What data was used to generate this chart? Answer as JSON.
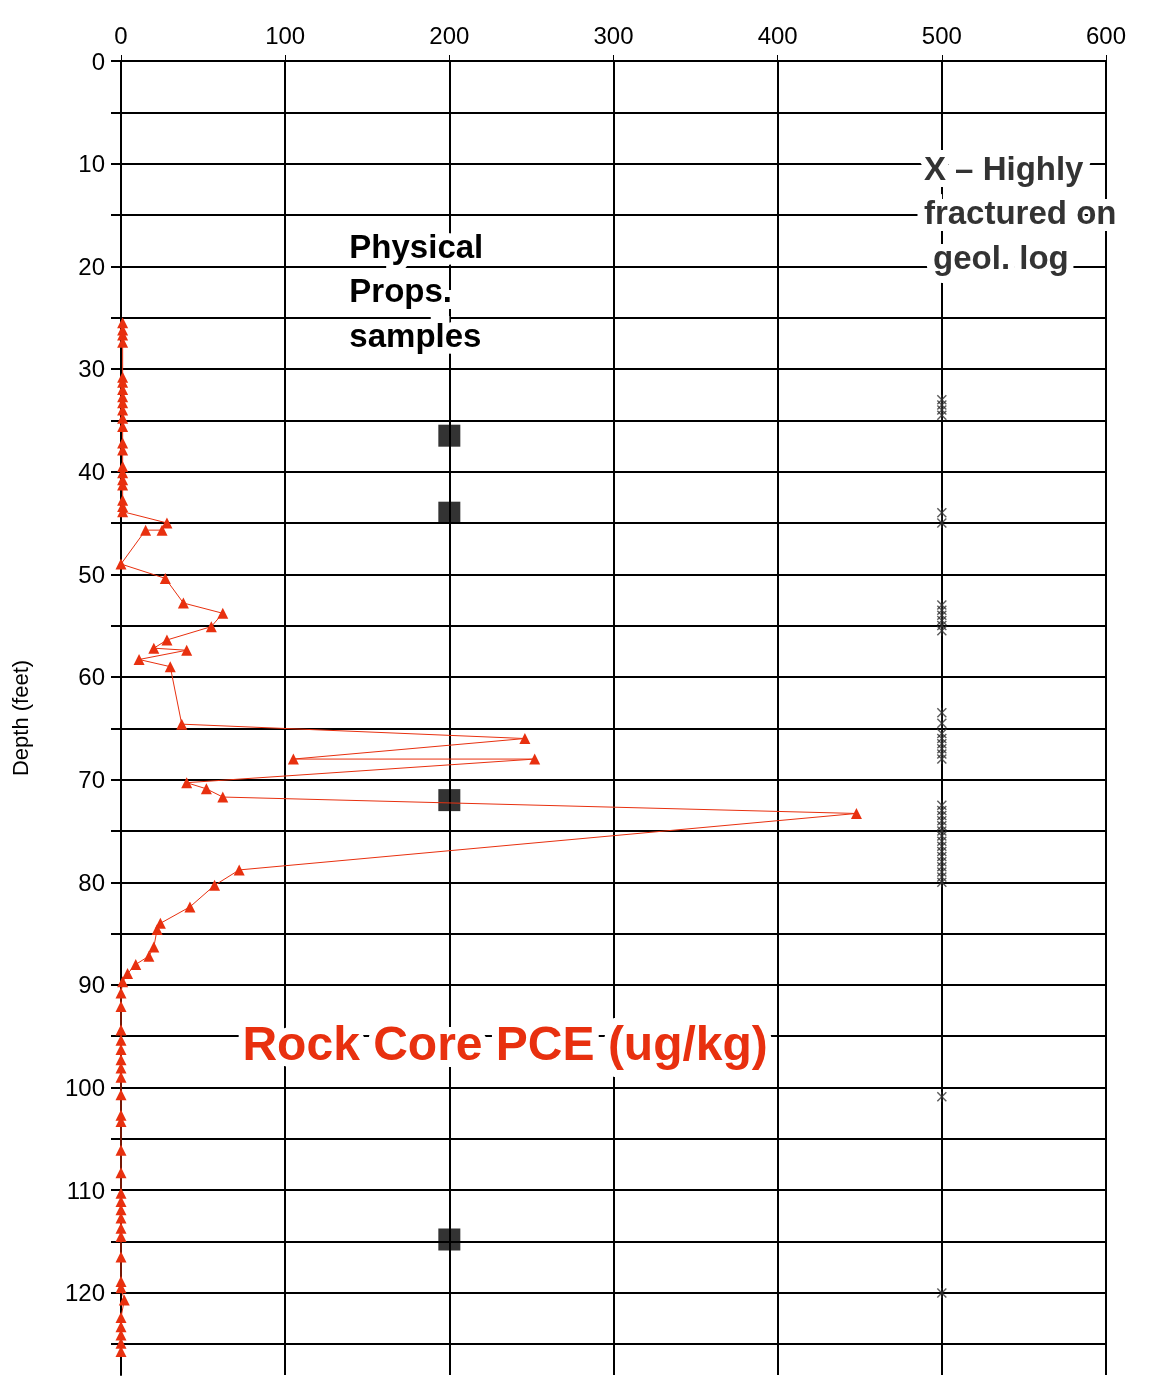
{
  "chart_data": {
    "type": "line",
    "ylabel": "Depth (feet)",
    "xlim": [
      0,
      600
    ],
    "xticks": [
      0,
      100,
      200,
      300,
      400,
      500,
      600
    ],
    "ylim": [
      128,
      0
    ],
    "yticks": [
      0,
      {
        "value": 5,
        "label": null
      },
      10,
      {
        "value": 15,
        "label": null
      },
      20,
      {
        "value": 25,
        "label": null
      },
      30,
      {
        "value": 35,
        "label": null
      },
      40,
      {
        "value": 45,
        "label": null
      },
      50,
      {
        "value": 55,
        "label": null
      },
      60,
      {
        "value": 65,
        "label": null
      },
      70,
      {
        "value": 75,
        "label": null
      },
      80,
      {
        "value": 85,
        "label": null
      },
      90,
      {
        "value": 95,
        "label": null
      },
      100,
      {
        "value": 105,
        "label": null
      },
      110,
      {
        "value": 115,
        "label": null
      },
      120,
      {
        "value": 125,
        "label": null
      }
    ],
    "grid": true,
    "series": [
      {
        "name": "Rock Core PCE (ug/kg)",
        "type": "line",
        "marker": "triangle",
        "color": "#e8300f",
        "x": [
          1,
          1,
          1,
          1,
          1,
          1,
          1,
          1,
          1,
          1,
          1,
          1,
          1,
          1,
          1,
          1,
          1,
          1,
          1,
          1,
          1,
          28,
          25,
          15,
          0,
          27,
          38,
          62,
          55,
          28,
          20,
          40,
          11,
          30,
          37,
          246,
          105,
          252,
          40,
          52,
          62,
          448,
          72,
          57,
          42,
          24,
          22,
          20,
          17,
          9,
          4,
          1,
          0,
          0,
          0,
          0,
          0,
          0,
          0,
          0,
          0,
          0,
          0,
          0,
          0,
          0,
          0,
          0,
          0,
          0,
          0,
          0,
          0,
          0,
          2,
          0,
          0,
          0,
          0,
          0
        ],
        "values": [
          25.5,
          26.2,
          26.7,
          27.4,
          30.8,
          31.3,
          32,
          32.7,
          33.3,
          34,
          34.8,
          35.6,
          37.2,
          37.9,
          39.5,
          40.1,
          40.8,
          41.3,
          42.8,
          43.4,
          43.9,
          45,
          45.7,
          45.7,
          49,
          50.4,
          52.8,
          53.8,
          55.1,
          56.4,
          57.2,
          57.4,
          58.3,
          59,
          64.6,
          66,
          68,
          68,
          70.3,
          70.9,
          71.7,
          73.3,
          78.8,
          80.3,
          82.4,
          84,
          84.6,
          86.3,
          87.2,
          88,
          88.9,
          89.7,
          90.8,
          92.1,
          94.4,
          95.4,
          96.3,
          97.3,
          98.1,
          99,
          100.7,
          102.7,
          103.3,
          106.1,
          108.3,
          110.3,
          111.1,
          111.9,
          112.7,
          113.7,
          114.5,
          116.5,
          118.9,
          119.5,
          120.7,
          122.4,
          123.3,
          124.1,
          124.9,
          125.7
        ]
      },
      {
        "name": "Physical Props. samples",
        "type": "scatter",
        "marker": "square",
        "color": "#000000",
        "x": [
          200,
          200,
          200,
          200
        ],
        "values": [
          36.5,
          44,
          72,
          114.8
        ]
      },
      {
        "name": "X – Highly fractured on geol. log",
        "type": "scatter",
        "marker": "cross",
        "color": "#333333",
        "x": [
          500,
          500,
          500,
          500,
          500,
          500,
          500,
          500,
          500,
          500,
          500,
          500,
          500,
          500,
          500,
          500,
          500,
          500,
          500,
          500,
          500,
          500,
          500,
          500,
          500,
          500,
          500,
          500,
          500,
          500,
          500,
          500,
          500,
          500,
          500,
          500,
          500,
          500
        ],
        "values": [
          33,
          33.5,
          34,
          34.5,
          44,
          45,
          53,
          53.5,
          54,
          54.5,
          55,
          55.5,
          63.5,
          64.5,
          65.5,
          66,
          66.5,
          67,
          67.5,
          68,
          72.5,
          73,
          73.5,
          74,
          74.5,
          75,
          75.5,
          76,
          76.5,
          77,
          77.5,
          78,
          78.5,
          79,
          79.5,
          80,
          100.9,
          120
        ]
      }
    ]
  }
}
